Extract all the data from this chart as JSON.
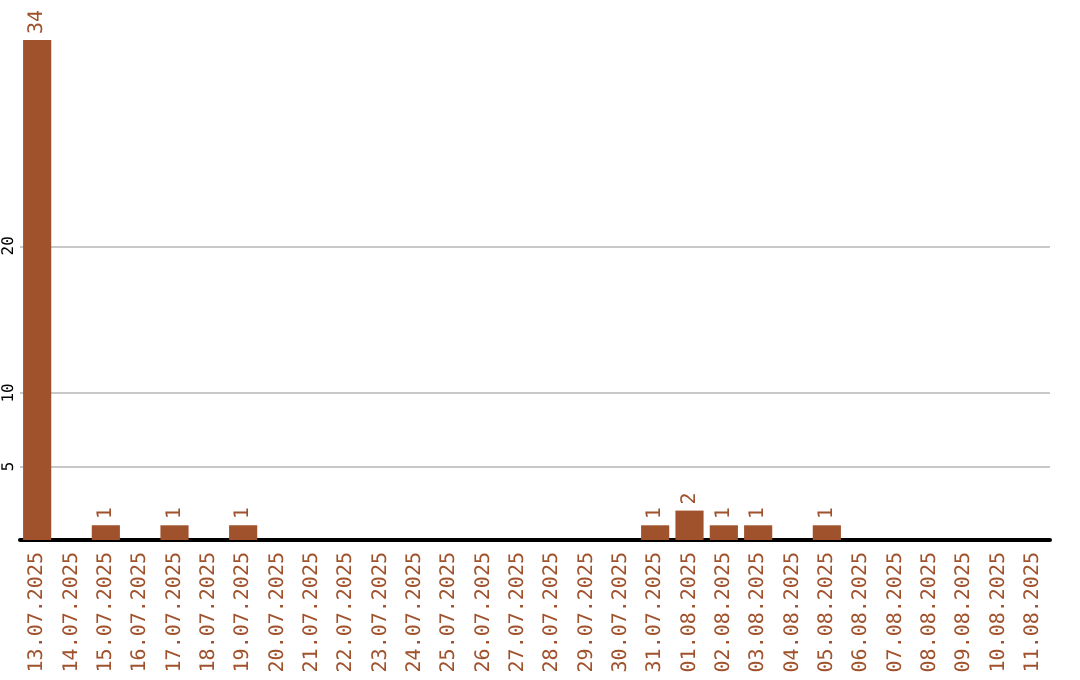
{
  "chart_data": {
    "type": "bar",
    "categories": [
      "13.07.2025",
      "14.07.2025",
      "15.07.2025",
      "16.07.2025",
      "17.07.2025",
      "18.07.2025",
      "19.07.2025",
      "20.07.2025",
      "21.07.2025",
      "22.07.2025",
      "23.07.2025",
      "24.07.2025",
      "25.07.2025",
      "26.07.2025",
      "27.07.2025",
      "28.07.2025",
      "29.07.2025",
      "30.07.2025",
      "31.07.2025",
      "01.08.2025",
      "02.08.2025",
      "03.08.2025",
      "04.08.2025",
      "05.08.2025",
      "06.08.2025",
      "07.08.2025",
      "08.08.2025",
      "09.08.2025",
      "10.08.2025",
      "11.08.2025"
    ],
    "values": [
      34,
      0,
      1,
      0,
      1,
      0,
      1,
      0,
      0,
      0,
      0,
      0,
      0,
      0,
      0,
      0,
      0,
      0,
      1,
      2,
      1,
      1,
      0,
      1,
      0,
      0,
      0,
      0,
      0,
      0
    ],
    "value_labels": [
      "34",
      null,
      "1",
      null,
      "1",
      null,
      "1",
      null,
      null,
      null,
      null,
      null,
      null,
      null,
      null,
      null,
      null,
      null,
      "1",
      "2",
      "1",
      "1",
      null,
      "1",
      null,
      null,
      null,
      null,
      null,
      null
    ],
    "color": "#a0522d",
    "ylim": [
      0,
      34
    ],
    "yticks": [
      5,
      10,
      20
    ],
    "grid": "y"
  }
}
